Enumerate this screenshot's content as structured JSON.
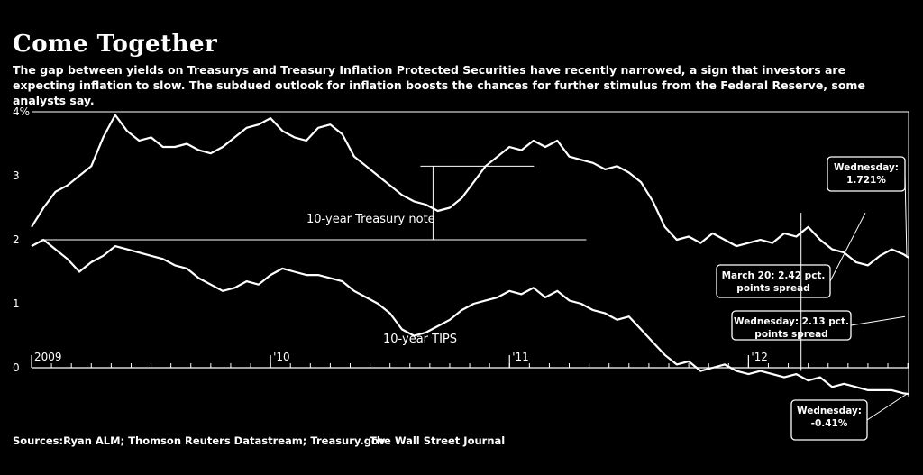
{
  "title": "Come Together",
  "subtitle": "The gap between yields on Treasurys and Treasury Inflation Protected Securities have recently narrowed, a sign that investors are expecting inflation to slow. The subdued outlook for inflation boosts the chances for further stimulus from the Federal Reserve, some analysts say.",
  "sources": "Sources:Ryan ALM; Thomson Reuters Datastream; Treasury.gov",
  "credit": "The Wall Street Journal",
  "colors": {
    "background": "#000000",
    "foreground": "#ffffff"
  },
  "chart_data": {
    "type": "line",
    "ylim": [
      0,
      4
    ],
    "y_ticks": [
      {
        "value": 4,
        "label": "4%"
      },
      {
        "value": 3,
        "label": "3"
      },
      {
        "value": 2,
        "label": "2"
      },
      {
        "value": 1,
        "label": "1"
      },
      {
        "value": 0,
        "label": "0"
      }
    ],
    "xlim": [
      2009.0,
      2012.67
    ],
    "x_ticks": [
      {
        "value": 2009.0,
        "label": "2009"
      },
      {
        "value": 2010.0,
        "label": "'10"
      },
      {
        "value": 2011.0,
        "label": "'11"
      },
      {
        "value": 2012.0,
        "label": "'12"
      }
    ],
    "grid": false,
    "series": [
      {
        "name": "10-year Treasury note",
        "x": [
          2009.0,
          2009.05,
          2009.1,
          2009.15,
          2009.2,
          2009.25,
          2009.3,
          2009.35,
          2009.4,
          2009.45,
          2009.5,
          2009.55,
          2009.6,
          2009.65,
          2009.7,
          2009.75,
          2009.8,
          2009.85,
          2009.9,
          2009.95,
          2010.0,
          2010.05,
          2010.1,
          2010.15,
          2010.2,
          2010.25,
          2010.3,
          2010.35,
          2010.4,
          2010.45,
          2010.5,
          2010.55,
          2010.6,
          2010.65,
          2010.7,
          2010.75,
          2010.8,
          2010.85,
          2010.9,
          2010.95,
          2011.0,
          2011.05,
          2011.1,
          2011.15,
          2011.2,
          2011.25,
          2011.3,
          2011.35,
          2011.4,
          2011.45,
          2011.5,
          2011.55,
          2011.6,
          2011.65,
          2011.7,
          2011.75,
          2011.8,
          2011.85,
          2011.9,
          2011.95,
          2012.0,
          2012.05,
          2012.1,
          2012.15,
          2012.2,
          2012.25,
          2012.3,
          2012.35,
          2012.4,
          2012.45,
          2012.5,
          2012.55,
          2012.6,
          2012.65,
          2012.67
        ],
        "values": [
          2.2,
          2.5,
          2.75,
          2.85,
          3.0,
          3.15,
          3.6,
          3.95,
          3.7,
          3.55,
          3.6,
          3.45,
          3.45,
          3.5,
          3.4,
          3.35,
          3.45,
          3.6,
          3.75,
          3.8,
          3.9,
          3.7,
          3.6,
          3.55,
          3.75,
          3.8,
          3.65,
          3.3,
          3.15,
          3.0,
          2.85,
          2.7,
          2.6,
          2.55,
          2.45,
          2.5,
          2.65,
          2.9,
          3.15,
          3.3,
          3.45,
          3.4,
          3.55,
          3.45,
          3.55,
          3.3,
          3.25,
          3.2,
          3.1,
          3.15,
          3.05,
          2.9,
          2.6,
          2.2,
          2.0,
          2.05,
          1.95,
          2.1,
          2.0,
          1.9,
          1.95,
          2.0,
          1.95,
          2.1,
          2.05,
          2.2,
          2.0,
          1.85,
          1.8,
          1.65,
          1.6,
          1.75,
          1.85,
          1.77,
          1.72
        ]
      },
      {
        "name": "10-year TIPS",
        "x": [
          2009.0,
          2009.05,
          2009.1,
          2009.15,
          2009.2,
          2009.25,
          2009.3,
          2009.35,
          2009.4,
          2009.45,
          2009.5,
          2009.55,
          2009.6,
          2009.65,
          2009.7,
          2009.75,
          2009.8,
          2009.85,
          2009.9,
          2009.95,
          2010.0,
          2010.05,
          2010.1,
          2010.15,
          2010.2,
          2010.25,
          2010.3,
          2010.35,
          2010.4,
          2010.45,
          2010.5,
          2010.55,
          2010.6,
          2010.65,
          2010.7,
          2010.75,
          2010.8,
          2010.85,
          2010.9,
          2010.95,
          2011.0,
          2011.05,
          2011.1,
          2011.15,
          2011.2,
          2011.25,
          2011.3,
          2011.35,
          2011.4,
          2011.45,
          2011.5,
          2011.55,
          2011.6,
          2011.65,
          2011.7,
          2011.75,
          2011.8,
          2011.85,
          2011.9,
          2011.95,
          2012.0,
          2012.05,
          2012.1,
          2012.15,
          2012.2,
          2012.25,
          2012.3,
          2012.35,
          2012.4,
          2012.45,
          2012.5,
          2012.55,
          2012.6,
          2012.65,
          2012.67
        ],
        "values": [
          1.9,
          2.0,
          1.85,
          1.7,
          1.5,
          1.65,
          1.75,
          1.9,
          1.85,
          1.8,
          1.75,
          1.7,
          1.6,
          1.55,
          1.4,
          1.3,
          1.2,
          1.25,
          1.35,
          1.3,
          1.45,
          1.55,
          1.5,
          1.45,
          1.45,
          1.4,
          1.35,
          1.2,
          1.1,
          1.0,
          0.85,
          0.6,
          0.5,
          0.55,
          0.65,
          0.75,
          0.9,
          1.0,
          1.05,
          1.1,
          1.2,
          1.15,
          1.25,
          1.1,
          1.2,
          1.05,
          1.0,
          0.9,
          0.85,
          0.75,
          0.8,
          0.6,
          0.4,
          0.2,
          0.05,
          0.1,
          -0.05,
          0.0,
          0.05,
          -0.05,
          -0.1,
          -0.05,
          -0.1,
          -0.15,
          -0.1,
          -0.2,
          -0.15,
          -0.3,
          -0.25,
          -0.3,
          -0.35,
          -0.35,
          -0.35,
          -0.4,
          -0.41
        ]
      }
    ],
    "annotations": [
      {
        "text_lines": [
          "Wednesday:",
          "1.721%"
        ],
        "x": 2012.67,
        "y": 1.721
      },
      {
        "text_lines": [
          "March 20: 2.42 pct.",
          "points spread"
        ],
        "x": 2012.22,
        "y": 2.3
      },
      {
        "text_lines": [
          "Wednesday: 2.13 pct.",
          "points spread"
        ],
        "x": 2012.67,
        "y": 0.65
      },
      {
        "text_lines": [
          "Wednesday:",
          "-0.41%"
        ],
        "x": 2012.67,
        "y": -0.41
      }
    ],
    "spread_bracket": {
      "x": 2010.68,
      "y_low": 2.0,
      "y_high": 3.15
    }
  }
}
